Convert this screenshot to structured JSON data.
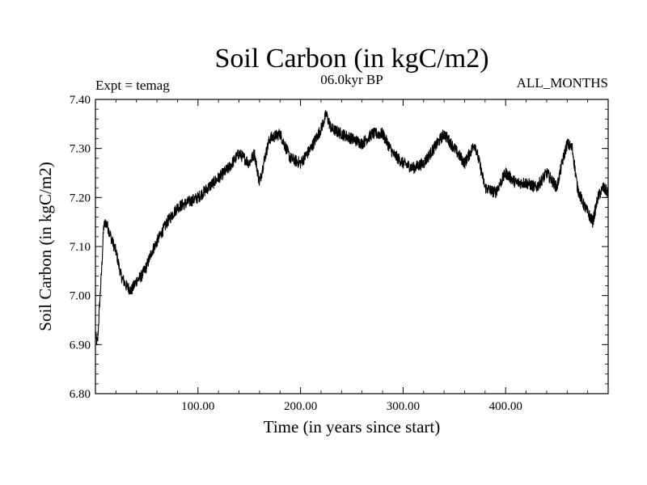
{
  "chart_data": {
    "type": "line",
    "title": "Soil Carbon (in kgC/m2)",
    "subtitle_left": "Expt = temag",
    "subtitle_center": "06.0kyr BP",
    "subtitle_right": "ALL_MONTHS",
    "xlabel": "Time (in years since start)",
    "ylabel": "Soil Carbon (in kgC/m2)",
    "xlim": [
      0,
      500
    ],
    "ylim": [
      6.8,
      7.4
    ],
    "x_ticks": [
      100,
      200,
      300,
      400
    ],
    "x_tick_labels": [
      "100.00",
      "200.00",
      "300.00",
      "400.00"
    ],
    "y_ticks": [
      6.8,
      6.9,
      7.0,
      7.1,
      7.2,
      7.3,
      7.4
    ],
    "y_tick_labels": [
      "6.80",
      "6.90",
      "7.00",
      "7.10",
      "7.20",
      "7.30",
      "7.40"
    ],
    "series": [
      {
        "name": "Soil Carbon",
        "color": "#000000",
        "x": [
          0,
          2,
          4,
          6,
          8,
          10,
          12,
          15,
          20,
          25,
          30,
          35,
          40,
          45,
          50,
          55,
          60,
          65,
          70,
          80,
          90,
          100,
          110,
          120,
          130,
          140,
          150,
          155,
          160,
          165,
          170,
          180,
          190,
          200,
          210,
          220,
          225,
          230,
          240,
          250,
          260,
          270,
          280,
          290,
          300,
          310,
          320,
          330,
          340,
          350,
          360,
          370,
          380,
          390,
          400,
          410,
          420,
          430,
          440,
          450,
          455,
          460,
          465,
          470,
          475,
          480,
          485,
          490,
          495,
          500
        ],
        "values": [
          6.92,
          6.9,
          6.98,
          7.05,
          7.14,
          7.15,
          7.14,
          7.12,
          7.09,
          7.04,
          7.02,
          7.01,
          7.03,
          7.04,
          7.06,
          7.09,
          7.11,
          7.13,
          7.15,
          7.18,
          7.19,
          7.2,
          7.22,
          7.24,
          7.26,
          7.29,
          7.27,
          7.29,
          7.23,
          7.28,
          7.32,
          7.33,
          7.28,
          7.27,
          7.3,
          7.34,
          7.37,
          7.34,
          7.33,
          7.32,
          7.31,
          7.33,
          7.33,
          7.29,
          7.27,
          7.26,
          7.27,
          7.3,
          7.33,
          7.3,
          7.27,
          7.31,
          7.22,
          7.21,
          7.25,
          7.23,
          7.23,
          7.22,
          7.25,
          7.22,
          7.27,
          7.31,
          7.3,
          7.22,
          7.19,
          7.17,
          7.15,
          7.2,
          7.22,
          7.21
        ]
      }
    ]
  }
}
